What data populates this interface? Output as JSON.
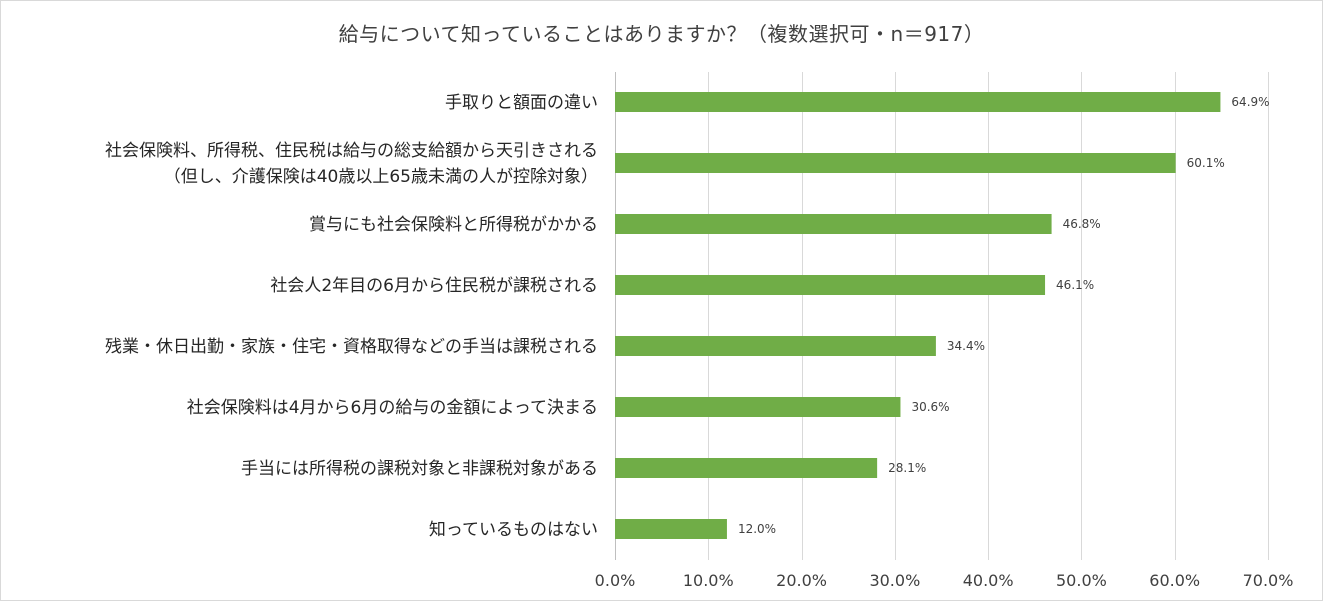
{
  "chart_data": {
    "type": "bar",
    "orientation": "horizontal",
    "title": "給与について知っていることはありますか？（複数選択可・n＝917）",
    "categories": [
      [
        "手取りと額面の違い"
      ],
      [
        "社会保険料、所得税、住民税は給与の総支給額から天引きされる",
        "（但し、介護保険は40歳以上65歳未満の人が控除対象）"
      ],
      [
        "賞与にも社会保険料と所得税がかかる"
      ],
      [
        "社会人2年目の6月から住民税が課税される"
      ],
      [
        "残業・休日出勤・家族・住宅・資格取得などの手当は課税される"
      ],
      [
        "社会保険料は4月から6月の給与の金額によって決まる"
      ],
      [
        "手当には所得税の課税対象と非課税対象がある"
      ],
      [
        "知っているものはない"
      ]
    ],
    "values": [
      64.9,
      60.1,
      46.8,
      46.1,
      34.4,
      30.6,
      28.1,
      12.0
    ],
    "value_labels": [
      "64.9%",
      "60.1%",
      "46.8%",
      "46.1%",
      "34.4%",
      "30.6%",
      "28.1%",
      "12.0%"
    ],
    "xlim": [
      0,
      70
    ],
    "ticks": [
      0,
      10,
      20,
      30,
      40,
      50,
      60,
      70
    ],
    "tick_labels": [
      "0.0%",
      "10.0%",
      "20.0%",
      "30.0%",
      "40.0%",
      "50.0%",
      "60.0%",
      "70.0%"
    ],
    "xlabel": "",
    "ylabel": "",
    "grid": true,
    "legend": "none",
    "bar_color": "#70ad47"
  }
}
